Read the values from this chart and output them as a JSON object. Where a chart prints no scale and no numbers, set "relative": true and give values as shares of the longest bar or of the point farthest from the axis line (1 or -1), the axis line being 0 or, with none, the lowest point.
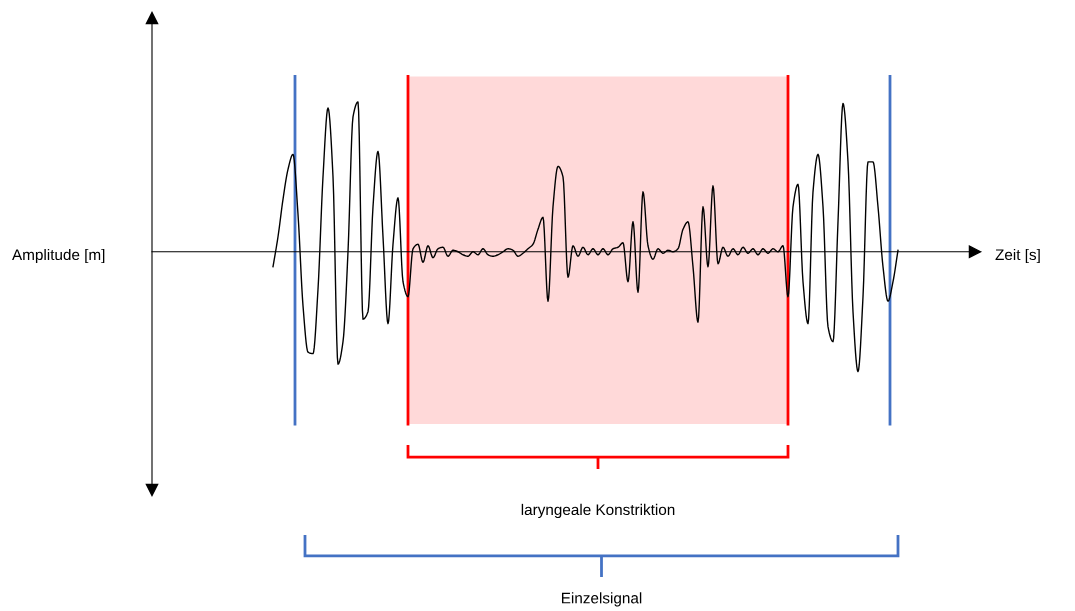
{
  "chart_data": {
    "type": "line",
    "relative": true,
    "categories": [
      null,
      null,
      null,
      null,
      null,
      null,
      null,
      null,
      null,
      null,
      null,
      null,
      null,
      null,
      null,
      null,
      null,
      null,
      null,
      null,
      null,
      null,
      null,
      null,
      null,
      null,
      null,
      null,
      null,
      null,
      null,
      null,
      null,
      null,
      null,
      null,
      null,
      null,
      null,
      null,
      null,
      null,
      null,
      null,
      null,
      null,
      null,
      null,
      null,
      null,
      null,
      null,
      null,
      null,
      null,
      null,
      null,
      null,
      null,
      null,
      null,
      null,
      null,
      null,
      null,
      null,
      null,
      null,
      null,
      null,
      null,
      null,
      null,
      null,
      null,
      null,
      null,
      null,
      null,
      null,
      null,
      null,
      null,
      null,
      null,
      null,
      null,
      null,
      null,
      null,
      null,
      null,
      null,
      null,
      null,
      null,
      null,
      null,
      null,
      null,
      null,
      null,
      null,
      null,
      null,
      null,
      null,
      null,
      null,
      null,
      null,
      null,
      null,
      null,
      null,
      null,
      null,
      null,
      null,
      null,
      null,
      null,
      null,
      null,
      null,
      null
    ],
    "series": [
      {
        "color": "#000000",
        "values": [
          -0.1,
          0.1,
          0.35,
          0.55,
          0.65,
          0.25,
          -0.36,
          -0.67,
          -0.68,
          -0.25,
          0.5,
          0.96,
          0.5,
          -0.75,
          -0.6,
          0,
          0.9,
          1.0,
          -0.45,
          -0.4,
          0.3,
          0.67,
          0.1,
          -0.48,
          0.05,
          0.36,
          -0.2,
          -0.3,
          0.02,
          0.05,
          -0.07,
          0.04,
          -0.04,
          0.02,
          0.03,
          -0.03,
          0.01,
          0,
          -0.02,
          -0.03,
          0,
          -0.02,
          0.02,
          -0.02,
          -0.03,
          -0.02,
          0,
          0.02,
          0.01,
          -0.03,
          -0.01,
          0.02,
          0.05,
          0.15,
          0.23,
          -0.33,
          0.3,
          0.57,
          0.5,
          -0.17,
          0.04,
          -0.03,
          0.03,
          -0.02,
          0.02,
          -0.02,
          0.02,
          -0.02,
          0.02,
          0.03,
          0.06,
          -0.2,
          0.2,
          -0.27,
          0.4,
          0.04,
          -0.05,
          0.02,
          -0.01,
          0.01,
          0,
          0.02,
          0.15,
          0.2,
          -0.1,
          -0.47,
          0.3,
          -0.1,
          0.44,
          -0.08,
          0.03,
          -0.03,
          0.02,
          -0.02,
          0.03,
          -0.01,
          0.02,
          -0.02,
          0.02,
          -0.01,
          0.02,
          0,
          0.04,
          -0.3,
          0.3,
          0.45,
          -0.2,
          -0.48,
          0.4,
          0.65,
          0.3,
          -0.5,
          -0.6,
          0.2,
          0.99,
          0.6,
          -0.4,
          -0.8,
          -0.3,
          0.6,
          0.6,
          0.3,
          -0.1,
          -0.33,
          -0.2,
          0.01
        ]
      }
    ],
    "annotations": [
      "Amplitude [m]",
      "Zeit [s]",
      "laryngeale Konstriktion",
      "Einzelsignal"
    ]
  }
}
